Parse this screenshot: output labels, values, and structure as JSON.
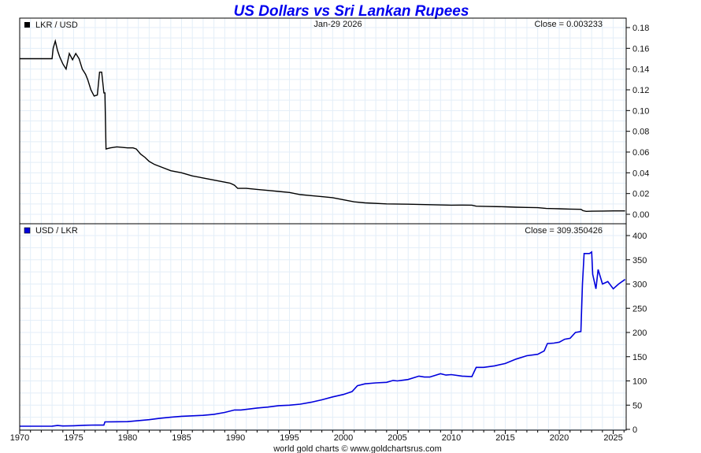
{
  "chart_data": [
    {
      "type": "line",
      "title": "US Dollars vs Sri Lankan Rupees",
      "date_label": "Jan-29  2026",
      "legend": "LKR / USD",
      "close_label": "Close = 0.003233",
      "series_color": "#000000",
      "ylim": [
        0,
        0.18
      ],
      "yticks": [
        "0.18",
        "0.16",
        "0.14",
        "0.12",
        "0.10",
        "0.08",
        "0.06",
        "0.04",
        "0.02",
        "0.00"
      ],
      "ytick_values": [
        0.18,
        0.16,
        0.14,
        0.12,
        0.1,
        0.08,
        0.06,
        0.04,
        0.02,
        0.0
      ],
      "grid": true,
      "legend_position": "top-left",
      "x": [
        1970,
        1973.0,
        1973.1,
        1973.3,
        1973.5,
        1973.7,
        1974.0,
        1974.3,
        1974.6,
        1974.9,
        1975.2,
        1975.5,
        1975.8,
        1976.1,
        1976.3,
        1976.6,
        1976.9,
        1977.2,
        1977.4,
        1977.6,
        1977.8,
        1977.9,
        1978.0,
        1978.4,
        1979.0,
        1980.0,
        1980.5,
        1980.8,
        1981.2,
        1981.6,
        1982.0,
        1982.5,
        1983.0,
        1984.0,
        1985.0,
        1986.0,
        1987.0,
        1988.0,
        1989.0,
        1989.5,
        1989.9,
        1990.2,
        1991.0,
        1992.0,
        1993.0,
        1994.0,
        1995.0,
        1996.0,
        1997.0,
        1998.0,
        1999.0,
        2000.0,
        2001.0,
        2002.0,
        2004.0,
        2006.0,
        2008.0,
        2010.0,
        2011.0,
        2011.9,
        2012.3,
        2013.0,
        2015.0,
        2016.0,
        2017.0,
        2018.0,
        2018.8,
        2019.5,
        2020.0,
        2021.0,
        2022.0,
        2022.2,
        2022.5,
        2023.0,
        2024.0,
        2025.0,
        2026.1
      ],
      "values": [
        0.15,
        0.15,
        0.16,
        0.167,
        0.158,
        0.152,
        0.145,
        0.14,
        0.155,
        0.149,
        0.155,
        0.15,
        0.14,
        0.135,
        0.13,
        0.12,
        0.114,
        0.115,
        0.137,
        0.137,
        0.117,
        0.117,
        0.063,
        0.064,
        0.065,
        0.064,
        0.064,
        0.063,
        0.058,
        0.055,
        0.051,
        0.048,
        0.046,
        0.042,
        0.04,
        0.037,
        0.035,
        0.033,
        0.031,
        0.03,
        0.028,
        0.025,
        0.025,
        0.024,
        0.023,
        0.022,
        0.021,
        0.019,
        0.018,
        0.017,
        0.016,
        0.014,
        0.012,
        0.011,
        0.01,
        0.0097,
        0.0093,
        0.0088,
        0.0089,
        0.0088,
        0.0078,
        0.0077,
        0.0072,
        0.0068,
        0.0066,
        0.0064,
        0.0056,
        0.0055,
        0.0053,
        0.005,
        0.0048,
        0.0035,
        0.0028,
        0.003,
        0.0031,
        0.0033,
        0.003233
      ]
    },
    {
      "type": "line",
      "legend": "USD / LKR",
      "close_label": "Close = 309.350426",
      "series_color": "#0000dd",
      "ylim": [
        0,
        400
      ],
      "yticks": [
        "400",
        "350",
        "300",
        "250",
        "200",
        "150",
        "100",
        "50",
        "0"
      ],
      "ytick_values": [
        400,
        350,
        300,
        250,
        200,
        150,
        100,
        50,
        0
      ],
      "xlabel_ticks": [
        "1970",
        "1975",
        "1980",
        "1985",
        "1990",
        "1995",
        "2000",
        "2005",
        "2010",
        "2015",
        "2020",
        "2025"
      ],
      "xtick_values": [
        1970,
        1975,
        1980,
        1985,
        1990,
        1995,
        2000,
        2005,
        2010,
        2015,
        2020,
        2025
      ],
      "xlim": [
        1970,
        2026.2
      ],
      "grid": true,
      "legend_position": "top-left",
      "x": [
        1970,
        1973.0,
        1973.5,
        1974.0,
        1975.0,
        1976.0,
        1977.0,
        1977.8,
        1977.9,
        1978.5,
        1980.0,
        1981.0,
        1982.0,
        1983.0,
        1984.0,
        1985.0,
        1986.0,
        1987.0,
        1988.0,
        1989.0,
        1989.9,
        1990.5,
        1992.0,
        1993.0,
        1994.0,
        1995.0,
        1996.0,
        1997.0,
        1998.0,
        1999.0,
        2000.0,
        2000.8,
        2001.3,
        2002.0,
        2003.0,
        2004.0,
        2004.6,
        2005.0,
        2006.0,
        2007.0,
        2007.5,
        2008.0,
        2009.0,
        2009.5,
        2010.0,
        2011.0,
        2011.9,
        2012.3,
        2013.0,
        2014.0,
        2015.0,
        2016.0,
        2017.0,
        2018.0,
        2018.6,
        2018.9,
        2019.5,
        2020.0,
        2020.5,
        2021.0,
        2021.5,
        2022.0,
        2022.15,
        2022.3,
        2022.8,
        2023.0,
        2023.1,
        2023.4,
        2023.6,
        2024.0,
        2024.5,
        2025.0,
        2025.5,
        2026.1
      ],
      "values": [
        6.5,
        6.7,
        8,
        7,
        7.5,
        8.5,
        9,
        8.8,
        15.5,
        15.6,
        16,
        18,
        20,
        23,
        25,
        27,
        28,
        29,
        31,
        35,
        40,
        40,
        44,
        46,
        49,
        50,
        52,
        56,
        61,
        67,
        72,
        78,
        90,
        94,
        96,
        97,
        101,
        100,
        103,
        110,
        108,
        108,
        115,
        112,
        113,
        110,
        109,
        128,
        128,
        131,
        136,
        145,
        152,
        155,
        162,
        177,
        178,
        180,
        186,
        188,
        200,
        202,
        300,
        363,
        363,
        366,
        320,
        290,
        330,
        300,
        305,
        290,
        300,
        309.35
      ]
    }
  ],
  "footer": "world gold charts © www.goldchartsrus.com"
}
